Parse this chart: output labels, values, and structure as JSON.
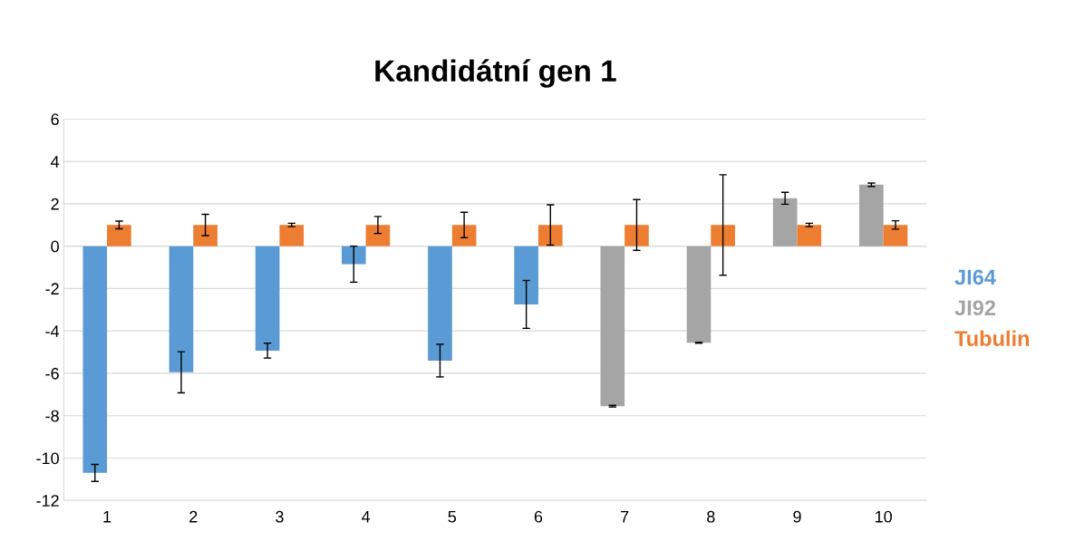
{
  "chart_data": {
    "type": "bar",
    "title": "Kandidátní gen 1",
    "categories": [
      "1",
      "2",
      "3",
      "4",
      "5",
      "6",
      "7",
      "8",
      "9",
      "10"
    ],
    "series": [
      {
        "name": "JI64",
        "color": "#5b9bd5",
        "values": [
          -10.7,
          -5.95,
          -4.93,
          -0.85,
          -5.4,
          -2.75,
          null,
          null,
          null,
          null
        ],
        "errors": [
          0.4,
          0.97,
          0.35,
          0.85,
          0.77,
          1.13,
          null,
          null,
          null,
          null
        ]
      },
      {
        "name": "JI92",
        "color": "#a5a5a5",
        "values": [
          null,
          null,
          null,
          null,
          null,
          null,
          -7.55,
          -4.56,
          2.26,
          2.9
        ],
        "errors": [
          null,
          null,
          null,
          null,
          null,
          null,
          0.04,
          0.02,
          0.28,
          0.08
        ]
      },
      {
        "name": "Tubulin",
        "color": "#ed7d31",
        "values": [
          1,
          1,
          1,
          1,
          1,
          1,
          1,
          1,
          1,
          1
        ],
        "errors": [
          0.18,
          0.5,
          0.08,
          0.4,
          0.6,
          0.95,
          1.2,
          2.37,
          0.08,
          0.2
        ]
      }
    ],
    "ylim": [
      -12,
      6
    ],
    "yticks": [
      -12,
      -10,
      -8,
      -6,
      -4,
      -2,
      0,
      2,
      4,
      6
    ],
    "grid": "y",
    "legend": "right"
  }
}
